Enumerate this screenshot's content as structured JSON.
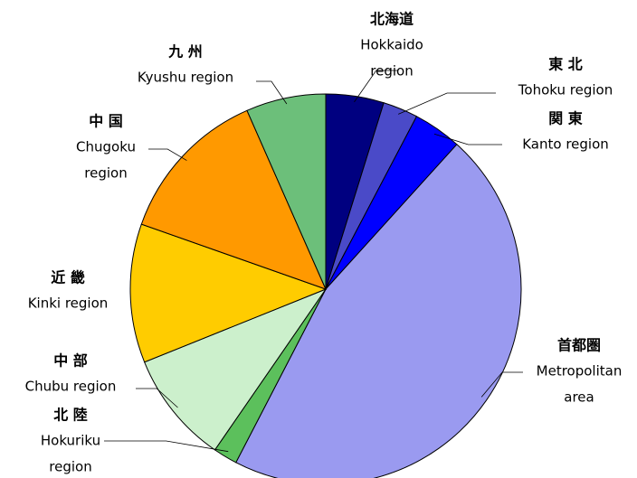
{
  "chart_data": {
    "type": "pie",
    "labels": [
      {
        "ja": "北海道",
        "en": [
          "Hokkaido",
          "region"
        ]
      },
      {
        "ja": "東 北",
        "en": [
          "Tohoku region"
        ]
      },
      {
        "ja": "関 東",
        "en": [
          "Kanto region"
        ]
      },
      {
        "ja": "首都圏",
        "en": [
          "Metropolitan",
          "area"
        ]
      },
      {
        "ja": "北 陸",
        "en": [
          "Hokuriku",
          "region"
        ]
      },
      {
        "ja": "中 部",
        "en": [
          "Chubu region"
        ]
      },
      {
        "ja": "近 畿",
        "en": [
          "Kinki region"
        ]
      },
      {
        "ja": "中 国",
        "en": [
          "Chugoku",
          "region"
        ]
      },
      {
        "ja": "九 州",
        "en": [
          "Kyushu region"
        ]
      }
    ],
    "values": [
      4.8,
      2.9,
      4.0,
      45.9,
      2.0,
      9.3,
      11.5,
      13.0,
      6.6
    ],
    "colors": [
      "#000080",
      "#4a4ac8",
      "#0000ff",
      "#9a9af0",
      "#5cc05c",
      "#ccf0cc",
      "#ffcc00",
      "#ff9900",
      "#6cbf7a"
    ]
  }
}
